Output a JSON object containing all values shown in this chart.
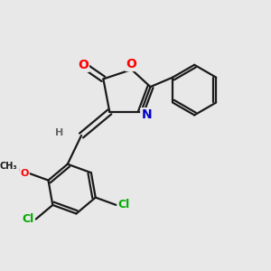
{
  "background_color": "#e8e8e8",
  "bond_color": "#1a1a1a",
  "bond_width": 1.6,
  "atom_colors": {
    "O": "#ff0000",
    "N": "#0000cc",
    "Cl": "#00aa00",
    "C": "#1a1a1a",
    "H": "#666666"
  },
  "figsize": [
    3.0,
    3.0
  ],
  "dpi": 100
}
